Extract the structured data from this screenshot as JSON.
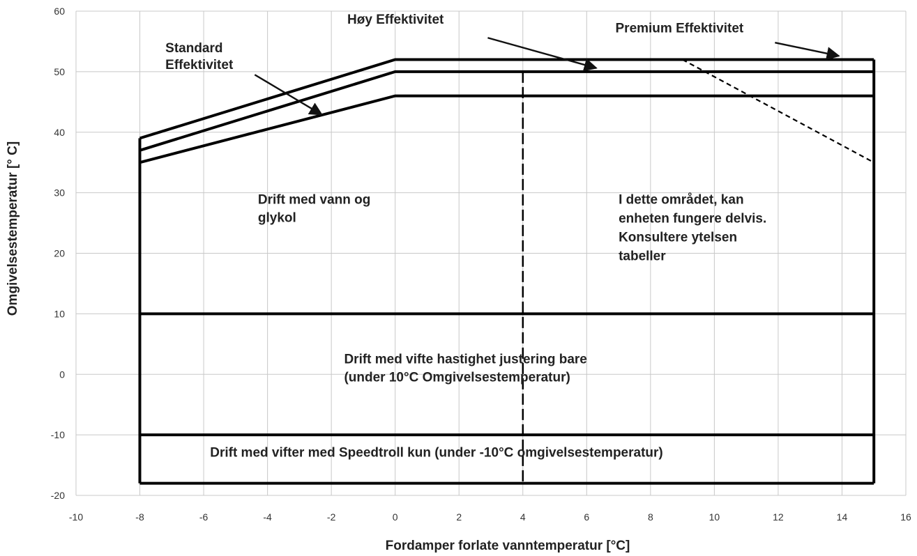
{
  "chart_data": {
    "type": "line",
    "title": "",
    "xlabel": "Fordamper forlate vanntemperatur [°C]",
    "ylabel": "Omgivelsestemperatur [° C]",
    "xlim": [
      -10,
      16
    ],
    "ylim": [
      -20,
      60
    ],
    "x_ticks": [
      -10,
      -8,
      -6,
      -4,
      -2,
      0,
      2,
      4,
      6,
      8,
      10,
      12,
      14,
      16
    ],
    "y_ticks": [
      -20,
      -10,
      0,
      10,
      20,
      30,
      40,
      50,
      60
    ],
    "grid": true,
    "series": [
      {
        "name": "Premium Effektivitet",
        "style": "solid",
        "points": [
          [
            -8,
            39
          ],
          [
            0,
            52
          ],
          [
            15,
            52
          ]
        ]
      },
      {
        "name": "Høy Effektivitet",
        "style": "solid",
        "points": [
          [
            -8,
            37
          ],
          [
            0,
            50
          ],
          [
            15,
            50
          ]
        ]
      },
      {
        "name": "Standard Effektivitet",
        "style": "solid",
        "points": [
          [
            -8,
            35
          ],
          [
            0,
            46
          ],
          [
            15,
            46
          ]
        ]
      },
      {
        "style": "solid",
        "points": [
          [
            -8,
            39
          ],
          [
            -8,
            -18
          ]
        ]
      },
      {
        "style": "solid",
        "points": [
          [
            15,
            52
          ],
          [
            15,
            -18
          ]
        ]
      },
      {
        "style": "solid",
        "points": [
          [
            -8,
            -18
          ],
          [
            15,
            -18
          ]
        ]
      },
      {
        "style": "solid",
        "points": [
          [
            -8,
            10
          ],
          [
            15,
            10
          ]
        ]
      },
      {
        "style": "solid",
        "points": [
          [
            -8,
            -10
          ],
          [
            15,
            -10
          ]
        ]
      },
      {
        "style": "dashed",
        "points": [
          [
            4,
            50
          ],
          [
            4,
            -18
          ]
        ]
      },
      {
        "style": "dashed",
        "points": [
          [
            9,
            52
          ],
          [
            15,
            35
          ]
        ]
      }
    ],
    "annotations": [
      {
        "id": "standard",
        "lines": [
          "Standard",
          "Effektivitet"
        ],
        "x": -7.2,
        "y": 53.2,
        "arrow_from": [
          -4.4,
          49.5
        ],
        "arrow_to": [
          -2.3,
          42.9
        ]
      },
      {
        "id": "hoy",
        "lines": [
          "Høy Effektivitet"
        ],
        "x": -1.5,
        "y": 57.9,
        "arrow_from": [
          2.9,
          55.6
        ],
        "arrow_to": [
          6.3,
          50.6
        ]
      },
      {
        "id": "premium",
        "lines": [
          "Premium Effektivitet"
        ],
        "x": 6.9,
        "y": 56.5,
        "arrow_from": [
          11.9,
          54.8
        ],
        "arrow_to": [
          13.9,
          52.6
        ]
      },
      {
        "id": "vann",
        "lines": [
          "Drift med vann og",
          "glykol"
        ],
        "x": -4.3,
        "y": 28.2
      },
      {
        "id": "delvis",
        "lines": [
          "I dette området, kan",
          "enheten fungere delvis.",
          "Konsultere ytelsen",
          "tabeller"
        ],
        "x": 7.0,
        "y": 28.2
      },
      {
        "id": "vifte",
        "lines": [
          "Drift med vifte hastighet justering bare",
          "(under 10°C Omgivelsestemperatur)"
        ],
        "x": -1.6,
        "y": 1.8
      },
      {
        "id": "speedtroll",
        "lines": [
          "Drift med vifter med Speedtroll kun (under -10°C omgivelsestemperatur)"
        ],
        "x": -5.8,
        "y": -13.6
      }
    ]
  }
}
